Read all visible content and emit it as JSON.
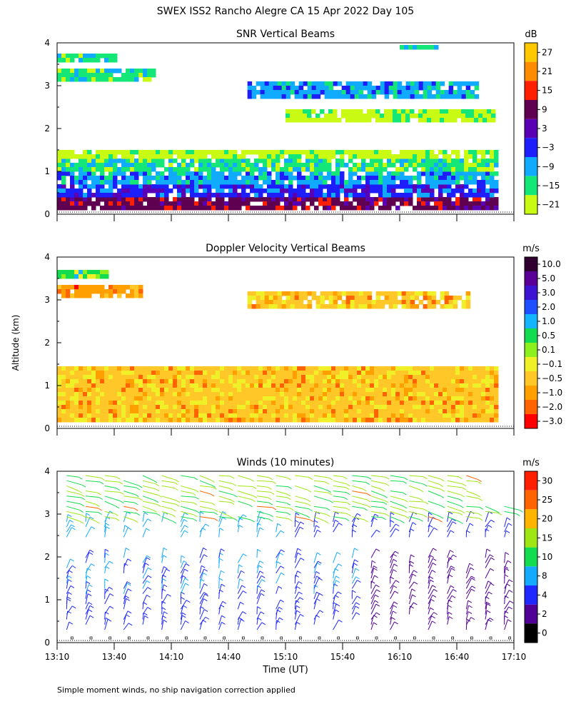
{
  "figure": {
    "title": "SWEX ISS2 Rancho Alegre CA  15 Apr 2022 Day 105",
    "ylabel": "Altitude (km)",
    "xlabel": "Time (UT)",
    "footnote": "Simple moment winds, no ship navigation correction applied"
  },
  "chart_data": [
    {
      "type": "heatmap",
      "title": "SNR Vertical Beams",
      "x_ticks": [
        "13:10",
        "13:40",
        "14:10",
        "14:40",
        "15:10",
        "15:40",
        "16:10",
        "16:40",
        "17:10"
      ],
      "y_ticks": [
        "0",
        "1",
        "2",
        "3",
        "4"
      ],
      "ylim": [
        0,
        4
      ],
      "xlim": [
        "13:10",
        "17:10"
      ],
      "colorbar": {
        "unit": "dB",
        "labels": [
          "27",
          "21",
          "15",
          "9",
          "3",
          "−3",
          "−9",
          "−15",
          "−21"
        ],
        "colors": [
          "#ffc800",
          "#ff8c00",
          "#ff1e00",
          "#600050",
          "#5a00b4",
          "#1e1efa",
          "#10aaff",
          "#14e678",
          "#c8fa14"
        ]
      },
      "layers": [
        {
          "bottom_km": 0.15,
          "top_km": 0.4,
          "level": "9",
          "start": "13:10",
          "end": "17:00"
        },
        {
          "bottom_km": 0.4,
          "top_km": 0.7,
          "level": "−3",
          "start": "13:10",
          "end": "17:00"
        },
        {
          "bottom_km": 0.7,
          "top_km": 1.0,
          "level": "−9",
          "start": "13:10",
          "end": "17:00"
        },
        {
          "bottom_km": 1.0,
          "top_km": 1.3,
          "level": "−15",
          "start": "13:10",
          "end": "17:00"
        },
        {
          "bottom_km": 1.3,
          "top_km": 1.5,
          "level": "−21",
          "start": "13:10",
          "end": "17:00"
        },
        {
          "bottom_km": 2.2,
          "top_km": 2.45,
          "level": "−21",
          "start": "15:10",
          "end": "17:00"
        },
        {
          "bottom_km": 2.7,
          "top_km": 3.1,
          "level": "−9",
          "start": "14:50",
          "end": "16:50"
        },
        {
          "bottom_km": 3.1,
          "top_km": 3.4,
          "level": "−15",
          "start": "13:10",
          "end": "14:00"
        },
        {
          "bottom_km": 3.55,
          "top_km": 3.75,
          "level": "−15",
          "start": "13:10",
          "end": "13:40"
        },
        {
          "bottom_km": 3.85,
          "top_km": 3.95,
          "level": "−15",
          "start": "16:10",
          "end": "16:30"
        }
      ]
    },
    {
      "type": "heatmap",
      "title": "Doppler Velocity Vertical Beams",
      "x_ticks": [
        "13:10",
        "13:40",
        "14:10",
        "14:40",
        "15:10",
        "15:40",
        "16:10",
        "16:40",
        "17:10"
      ],
      "y_ticks": [
        "0",
        "1",
        "2",
        "3",
        "4"
      ],
      "ylim": [
        0,
        4
      ],
      "xlim": [
        "13:10",
        "17:10"
      ],
      "colorbar": {
        "unit": "m/s",
        "labels": [
          "10.0",
          "5.0",
          "3.0",
          "2.0",
          "1.0",
          "0.5",
          "0.1",
          "−0.1",
          "−0.5",
          "−1.0",
          "−2.0",
          "−3.0"
        ],
        "colors": [
          "#300030",
          "#5a0096",
          "#3c14d2",
          "#1e50ff",
          "#14b4ff",
          "#14dc50",
          "#8cf01e",
          "#f0f028",
          "#ffc828",
          "#ffa000",
          "#ff6400",
          "#ff0000"
        ]
      },
      "layers": [
        {
          "bottom_km": 0.15,
          "top_km": 1.45,
          "level": "−0.5",
          "start": "13:10",
          "end": "17:00"
        },
        {
          "bottom_km": 2.85,
          "top_km": 3.2,
          "level": "−0.5",
          "start": "14:50",
          "end": "16:45"
        },
        {
          "bottom_km": 3.1,
          "top_km": 3.35,
          "level": "−1.0",
          "start": "13:10",
          "end": "13:55"
        },
        {
          "bottom_km": 3.55,
          "top_km": 3.7,
          "level": "0.5",
          "start": "13:10",
          "end": "13:35"
        }
      ]
    },
    {
      "type": "scatter",
      "title": "Winds (10 minutes)",
      "x_ticks": [
        "13:10",
        "13:40",
        "14:10",
        "14:40",
        "15:10",
        "15:40",
        "16:10",
        "16:40",
        "17:10"
      ],
      "y_ticks": [
        "0",
        "1",
        "2",
        "3",
        "4"
      ],
      "ylim": [
        0,
        4
      ],
      "xlim": [
        "13:10",
        "17:10"
      ],
      "colorbar": {
        "unit": "m/s",
        "labels": [
          "30",
          "25",
          "20",
          "15",
          "10",
          "8",
          "4",
          "2",
          "0"
        ],
        "colors": [
          "#ff1e00",
          "#ff6400",
          "#ffb400",
          "#a0e614",
          "#14dc50",
          "#14aaff",
          "#1e28ff",
          "#500096",
          "#000000"
        ]
      },
      "profile_times": [
        "13:15",
        "13:25",
        "13:35",
        "13:45",
        "13:55",
        "14:05",
        "14:15",
        "14:25",
        "14:35",
        "14:45",
        "14:55",
        "15:05",
        "15:15",
        "15:25",
        "15:35",
        "15:45",
        "15:55",
        "16:05",
        "16:15",
        "16:25",
        "16:35",
        "16:45",
        "16:55",
        "17:05"
      ]
    }
  ]
}
